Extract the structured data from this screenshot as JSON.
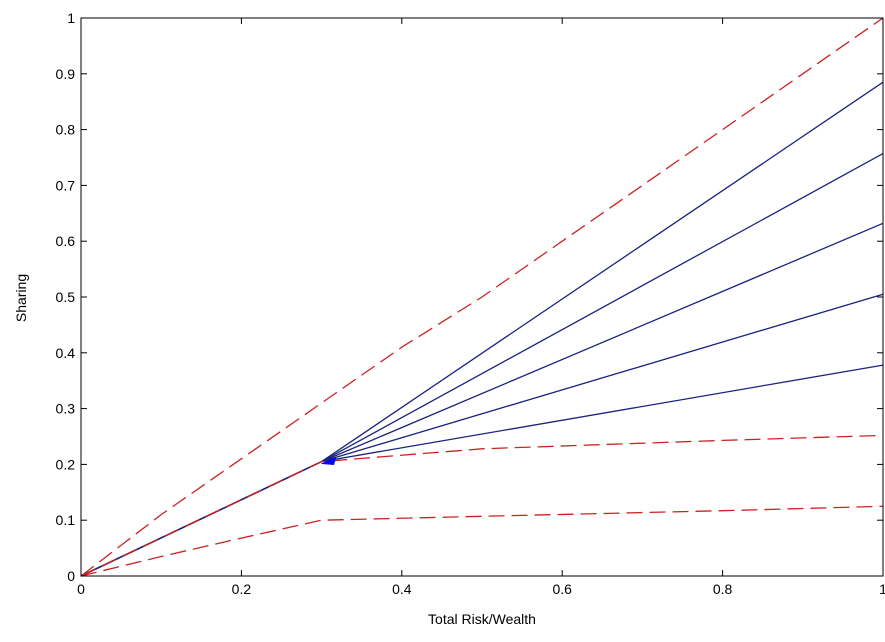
{
  "chart_data": {
    "type": "line",
    "xlabel": "Total Risk/Wealth",
    "ylabel": "Sharing",
    "xlim": [
      0,
      1
    ],
    "ylim": [
      0,
      1
    ],
    "xticks": [
      0,
      0.2,
      0.4,
      0.6,
      0.8,
      1
    ],
    "xtick_labels": [
      "0",
      "0.2",
      "0.4",
      "0.6",
      "0.8",
      "1"
    ],
    "yticks": [
      0,
      0.1,
      0.2,
      0.3,
      0.4,
      0.5,
      0.6,
      0.7,
      0.8,
      0.9,
      1
    ],
    "ytick_labels": [
      "0",
      "0.1",
      "0.2",
      "0.3",
      "0.4",
      "0.5",
      "0.6",
      "0.7",
      "0.8",
      "0.9",
      "1"
    ],
    "grid": false,
    "colors": {
      "solid": "#1a237e",
      "dashed": "#cc2222",
      "marker": "#0000ff"
    },
    "series": [
      {
        "style": "dashed",
        "color": "#cc2222",
        "x": [
          0,
          0.1,
          0.2,
          0.3,
          0.4,
          0.5,
          0.6,
          0.7,
          0.8,
          0.9,
          1
        ],
        "y": [
          0,
          0.11,
          0.21,
          0.31,
          0.41,
          0.5,
          0.6,
          0.7,
          0.8,
          0.9,
          1.0
        ]
      },
      {
        "style": "solid",
        "color": "#1a237e",
        "x": [
          0,
          0.3,
          1
        ],
        "y": [
          0,
          0.205,
          0.885
        ]
      },
      {
        "style": "solid",
        "color": "#1a237e",
        "x": [
          0,
          0.3,
          1
        ],
        "y": [
          0,
          0.205,
          0.757
        ]
      },
      {
        "style": "solid",
        "color": "#1a237e",
        "x": [
          0,
          0.3,
          1
        ],
        "y": [
          0,
          0.205,
          0.632
        ]
      },
      {
        "style": "solid",
        "color": "#1a237e",
        "x": [
          0,
          0.3,
          1
        ],
        "y": [
          0,
          0.205,
          0.505
        ]
      },
      {
        "style": "solid",
        "color": "#1a237e",
        "x": [
          0,
          0.3,
          1
        ],
        "y": [
          0,
          0.205,
          0.378
        ]
      },
      {
        "style": "dashed",
        "color": "#cc2222",
        "x": [
          0,
          0.3,
          0.5,
          0.8,
          1
        ],
        "y": [
          0,
          0.205,
          0.228,
          0.243,
          0.252
        ]
      },
      {
        "style": "dashed",
        "color": "#cc2222",
        "x": [
          0,
          0.1,
          0.2,
          0.3,
          0.5,
          0.8,
          1
        ],
        "y": [
          0,
          0.035,
          0.068,
          0.1,
          0.107,
          0.117,
          0.125
        ]
      }
    ],
    "marker": {
      "x": 0.31,
      "y": 0.207
    }
  }
}
